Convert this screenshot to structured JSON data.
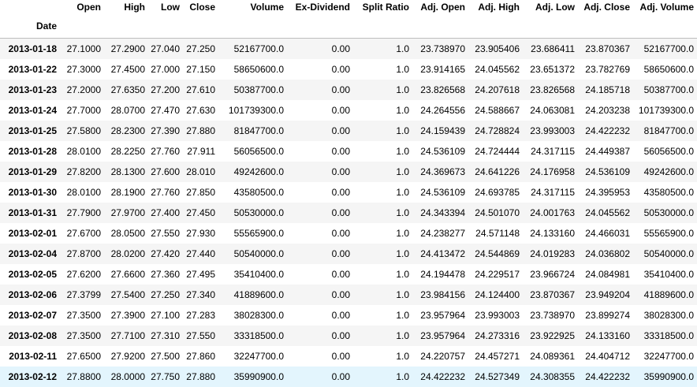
{
  "table": {
    "columns": [
      "Open",
      "High",
      "Low",
      "Close",
      "Volume",
      "Ex-Dividend",
      "Split Ratio",
      "Adj. Open",
      "Adj. High",
      "Adj. Low",
      "Adj. Close",
      "Adj. Volume"
    ],
    "index_name": "Date",
    "rows": [
      {
        "date": "2013-01-18",
        "values": [
          "27.1000",
          "27.2900",
          "27.040",
          "27.250",
          "52167700.0",
          "0.00",
          "1.0",
          "23.738970",
          "23.905406",
          "23.686411",
          "23.870367",
          "52167700.0"
        ]
      },
      {
        "date": "2013-01-22",
        "values": [
          "27.3000",
          "27.4500",
          "27.000",
          "27.150",
          "58650600.0",
          "0.00",
          "1.0",
          "23.914165",
          "24.045562",
          "23.651372",
          "23.782769",
          "58650600.0"
        ]
      },
      {
        "date": "2013-01-23",
        "values": [
          "27.2000",
          "27.6350",
          "27.200",
          "27.610",
          "50387700.0",
          "0.00",
          "1.0",
          "23.826568",
          "24.207618",
          "23.826568",
          "24.185718",
          "50387700.0"
        ]
      },
      {
        "date": "2013-01-24",
        "values": [
          "27.7000",
          "28.0700",
          "27.470",
          "27.630",
          "101739300.0",
          "0.00",
          "1.0",
          "24.264556",
          "24.588667",
          "24.063081",
          "24.203238",
          "101739300.0"
        ]
      },
      {
        "date": "2013-01-25",
        "values": [
          "27.5800",
          "28.2300",
          "27.390",
          "27.880",
          "81847700.0",
          "0.00",
          "1.0",
          "24.159439",
          "24.728824",
          "23.993003",
          "24.422232",
          "81847700.0"
        ]
      },
      {
        "date": "2013-01-28",
        "values": [
          "28.0100",
          "28.2250",
          "27.760",
          "27.911",
          "56056500.0",
          "0.00",
          "1.0",
          "24.536109",
          "24.724444",
          "24.317115",
          "24.449387",
          "56056500.0"
        ]
      },
      {
        "date": "2013-01-29",
        "values": [
          "27.8200",
          "28.1300",
          "27.600",
          "28.010",
          "49242600.0",
          "0.00",
          "1.0",
          "24.369673",
          "24.641226",
          "24.176958",
          "24.536109",
          "49242600.0"
        ]
      },
      {
        "date": "2013-01-30",
        "values": [
          "28.0100",
          "28.1900",
          "27.760",
          "27.850",
          "43580500.0",
          "0.00",
          "1.0",
          "24.536109",
          "24.693785",
          "24.317115",
          "24.395953",
          "43580500.0"
        ]
      },
      {
        "date": "2013-01-31",
        "values": [
          "27.7900",
          "27.9700",
          "27.400",
          "27.450",
          "50530000.0",
          "0.00",
          "1.0",
          "24.343394",
          "24.501070",
          "24.001763",
          "24.045562",
          "50530000.0"
        ]
      },
      {
        "date": "2013-02-01",
        "values": [
          "27.6700",
          "28.0500",
          "27.550",
          "27.930",
          "55565900.0",
          "0.00",
          "1.0",
          "24.238277",
          "24.571148",
          "24.133160",
          "24.466031",
          "55565900.0"
        ]
      },
      {
        "date": "2013-02-04",
        "values": [
          "27.8700",
          "28.0200",
          "27.420",
          "27.440",
          "50540000.0",
          "0.00",
          "1.0",
          "24.413472",
          "24.544869",
          "24.019283",
          "24.036802",
          "50540000.0"
        ]
      },
      {
        "date": "2013-02-05",
        "values": [
          "27.6200",
          "27.6600",
          "27.360",
          "27.495",
          "35410400.0",
          "0.00",
          "1.0",
          "24.194478",
          "24.229517",
          "23.966724",
          "24.084981",
          "35410400.0"
        ]
      },
      {
        "date": "2013-02-06",
        "values": [
          "27.3799",
          "27.5400",
          "27.250",
          "27.340",
          "41889600.0",
          "0.00",
          "1.0",
          "23.984156",
          "24.124400",
          "23.870367",
          "23.949204",
          "41889600.0"
        ]
      },
      {
        "date": "2013-02-07",
        "values": [
          "27.3500",
          "27.3900",
          "27.100",
          "27.283",
          "38028300.0",
          "0.00",
          "1.0",
          "23.957964",
          "23.993003",
          "23.738970",
          "23.899274",
          "38028300.0"
        ]
      },
      {
        "date": "2013-02-08",
        "values": [
          "27.3500",
          "27.7100",
          "27.310",
          "27.550",
          "33318500.0",
          "0.00",
          "1.0",
          "23.957964",
          "24.273316",
          "23.922925",
          "24.133160",
          "33318500.0"
        ]
      },
      {
        "date": "2013-02-11",
        "values": [
          "27.6500",
          "27.9200",
          "27.500",
          "27.860",
          "32247700.0",
          "0.00",
          "1.0",
          "24.220757",
          "24.457271",
          "24.089361",
          "24.404712",
          "32247700.0"
        ]
      },
      {
        "date": "2013-02-12",
        "values": [
          "27.8800",
          "28.0000",
          "27.750",
          "27.880",
          "35990900.0",
          "0.00",
          "1.0",
          "24.422232",
          "24.527349",
          "24.308355",
          "24.422232",
          "35990900.0"
        ],
        "highlighted": true
      }
    ]
  }
}
